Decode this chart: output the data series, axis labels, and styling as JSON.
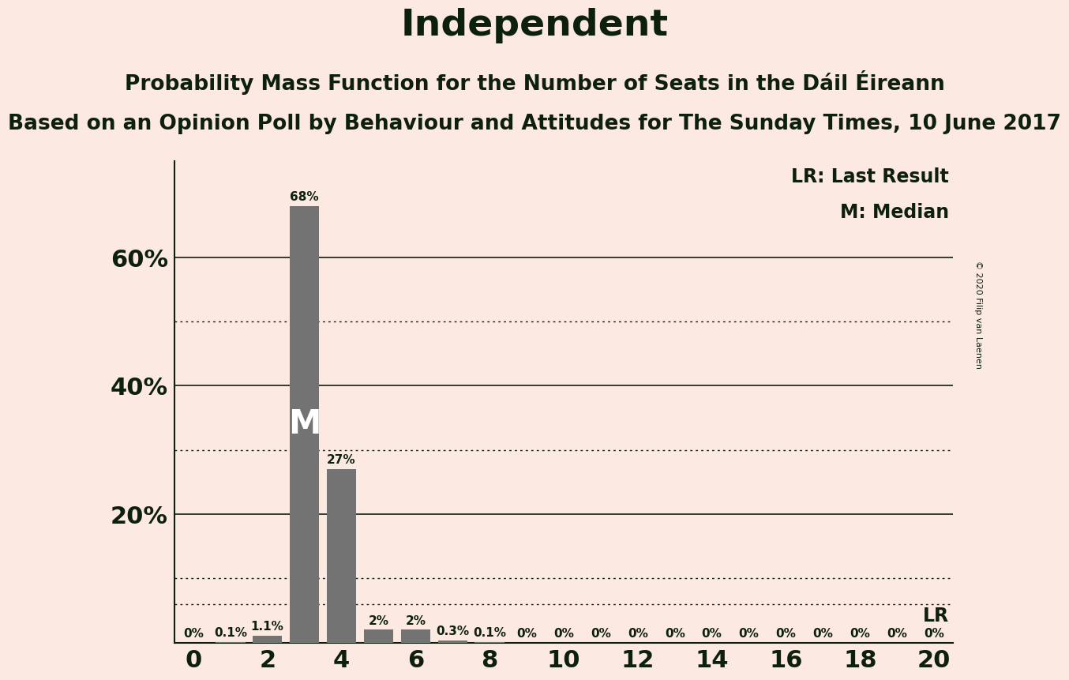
{
  "title": "Independent",
  "subtitle1": "Probability Mass Function for the Number of Seats in the Dáil Éireann",
  "subtitle2": "Based on an Opinion Poll by Behaviour and Attitudes for The Sunday Times, 10 June 2017",
  "copyright": "© 2020 Filip van Laenen",
  "seats": [
    0,
    1,
    2,
    3,
    4,
    5,
    6,
    7,
    8,
    9,
    10,
    11,
    12,
    13,
    14,
    15,
    16,
    17,
    18,
    19,
    20
  ],
  "probabilities": [
    0.0,
    0.1,
    1.1,
    68.0,
    27.0,
    2.0,
    2.0,
    0.3,
    0.1,
    0.0,
    0.0,
    0.0,
    0.0,
    0.0,
    0.0,
    0.0,
    0.0,
    0.0,
    0.0,
    0.0,
    0.0
  ],
  "bar_labels": [
    "0%",
    "0.1%",
    "1.1%",
    "68%",
    "27%",
    "2%",
    "2%",
    "0.3%",
    "0.1%",
    "0%",
    "0%",
    "0%",
    "0%",
    "0%",
    "0%",
    "0%",
    "0%",
    "0%",
    "0%",
    "0%",
    "0%"
  ],
  "bar_color": "#737373",
  "background_color": "#fce9e1",
  "median_seat": 3,
  "last_result": 6.0,
  "lr_label": "LR",
  "median_label": "M",
  "legend_lr": "LR: Last Result",
  "legend_m": "M: Median",
  "yticks_solid": [
    20,
    40,
    60
  ],
  "yticks_dotted": [
    10,
    30,
    50
  ],
  "ylim_max": 75,
  "xlim": [
    -0.5,
    20.5
  ],
  "xlabel_ticks": [
    0,
    2,
    4,
    6,
    8,
    10,
    12,
    14,
    16,
    18,
    20
  ],
  "text_color": "#0d1f0d",
  "title_fontsize": 34,
  "subtitle1_fontsize": 19,
  "subtitle2_fontsize": 19,
  "bar_label_fontsize": 11,
  "axis_tick_fontsize": 22,
  "legend_fontsize": 17,
  "median_fontsize": 30
}
